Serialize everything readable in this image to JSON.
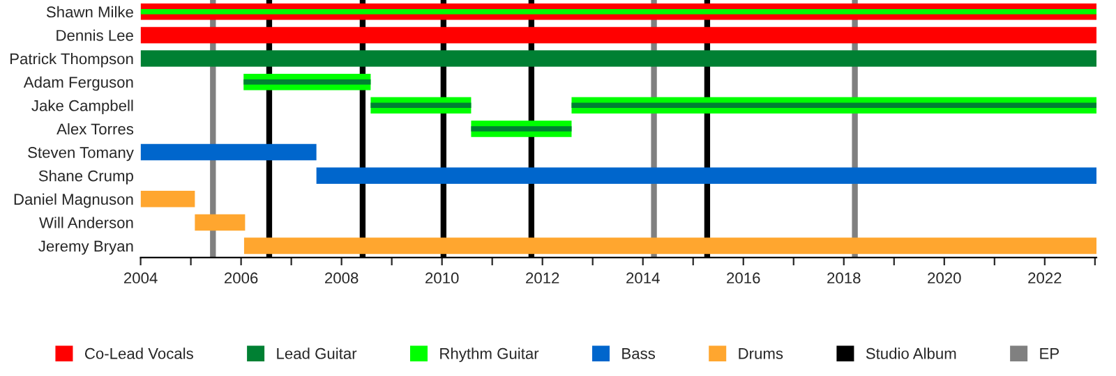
{
  "chart_data": {
    "type": "bar",
    "orientation": "horizontal",
    "categories": [
      "Shawn Milke",
      "Dennis Lee",
      "Patrick Thompson",
      "Adam Ferguson",
      "Jake Campbell",
      "Alex Torres",
      "Steven Tomany",
      "Shane Crump",
      "Daniel Magnuson",
      "Will Anderson",
      "Jeremy Bryan"
    ],
    "series": [
      {
        "name": "Co-Lead Vocals",
        "color": "#ff0000",
        "base": [
          2004,
          2004,
          null,
          null,
          null,
          null,
          null,
          null,
          null,
          null,
          null
        ],
        "values": [
          19.03,
          19.03,
          null,
          null,
          null,
          null,
          null,
          null,
          null,
          null,
          null
        ]
      },
      {
        "name": "Lead Guitar",
        "color": "#008033",
        "base": [
          null,
          null,
          2004,
          null,
          null,
          null,
          null,
          null,
          null,
          null,
          null
        ],
        "values": [
          null,
          null,
          19.03,
          null,
          null,
          null,
          null,
          null,
          null,
          null,
          null
        ]
      },
      {
        "name": "Rhythm Guitar",
        "color": "#00ff00",
        "base": [
          null,
          null,
          null,
          2006.05,
          2008.58,
          2010.58,
          null,
          null,
          null,
          null,
          null
        ],
        "values": [
          null,
          null,
          null,
          2.53,
          2.0,
          2.0,
          null,
          null,
          null,
          null,
          null
        ]
      },
      {
        "color": "#00ff00",
        "base": [
          null,
          null,
          null,
          null,
          2012.58,
          null,
          null,
          null,
          null,
          null,
          null
        ],
        "values": [
          null,
          null,
          null,
          null,
          10.45,
          null,
          null,
          null,
          null,
          null,
          null
        ]
      },
      {
        "name": "Bass",
        "color": "#0066cc",
        "base": [
          null,
          null,
          null,
          null,
          null,
          null,
          2004,
          2007.5,
          null,
          null,
          null
        ],
        "values": [
          null,
          null,
          null,
          null,
          null,
          null,
          3.5,
          15.53,
          null,
          null,
          null
        ]
      },
      {
        "name": "Drums",
        "color": "#ffa62f",
        "base": [
          null,
          null,
          null,
          null,
          null,
          null,
          null,
          null,
          2004,
          2005.08,
          2006.06
        ],
        "values": [
          null,
          null,
          null,
          null,
          null,
          null,
          null,
          null,
          1.08,
          1.0,
          16.97
        ]
      },
      {
        "color": "#00ff00",
        "base": [
          2004,
          null,
          null,
          null,
          null,
          null,
          null,
          null,
          null,
          null,
          null
        ],
        "values": [
          19.03,
          null,
          null,
          null,
          null,
          null,
          null,
          null,
          null,
          null,
          null
        ]
      },
      {
        "color": "#008033",
        "base": [
          null,
          null,
          null,
          2006.05,
          2008.58,
          2010.58,
          null,
          null,
          null,
          null,
          null
        ],
        "values": [
          null,
          null,
          null,
          2.53,
          2.0,
          2.0,
          null,
          null,
          null,
          null,
          null
        ]
      },
      {
        "color": "#008033",
        "base": [
          null,
          null,
          null,
          null,
          2012.58,
          null,
          null,
          null,
          null,
          null,
          null
        ],
        "values": [
          null,
          null,
          null,
          null,
          10.45,
          null,
          null,
          null,
          null,
          null,
          null
        ]
      }
    ],
    "ref_lines": [
      {
        "axis": "x",
        "value": 2006.56,
        "label": "Studio Album",
        "color": "#000000"
      },
      {
        "axis": "x",
        "value": 2008.42,
        "color": "#000000"
      },
      {
        "axis": "x",
        "value": 2010.03,
        "color": "#000000"
      },
      {
        "axis": "x",
        "value": 2011.78,
        "color": "#000000"
      },
      {
        "axis": "x",
        "value": 2015.28,
        "color": "#000000"
      },
      {
        "axis": "x",
        "value": 2005.44,
        "label": "EP",
        "color": "#808080"
      },
      {
        "axis": "x",
        "value": 2014.22,
        "color": "#808080"
      },
      {
        "axis": "x",
        "value": 2018.22,
        "color": "#808080"
      }
    ],
    "xlim": [
      2004,
      2023.03
    ],
    "xticks": [
      2004,
      {
        "value": 2005,
        "label": null
      },
      2006,
      {
        "value": 2007,
        "label": null
      },
      2008,
      {
        "value": 2009,
        "label": null
      },
      2010,
      {
        "value": 2011,
        "label": null
      },
      2012,
      {
        "value": 2013,
        "label": null
      },
      2014,
      {
        "value": 2015,
        "label": null
      },
      2016,
      {
        "value": 2017,
        "label": null
      },
      2018,
      {
        "value": 2019,
        "label": null
      },
      2020,
      {
        "value": 2021,
        "label": null
      },
      2022,
      {
        "value": 2023,
        "label": null
      }
    ],
    "grid": false,
    "legend": "bottom"
  }
}
